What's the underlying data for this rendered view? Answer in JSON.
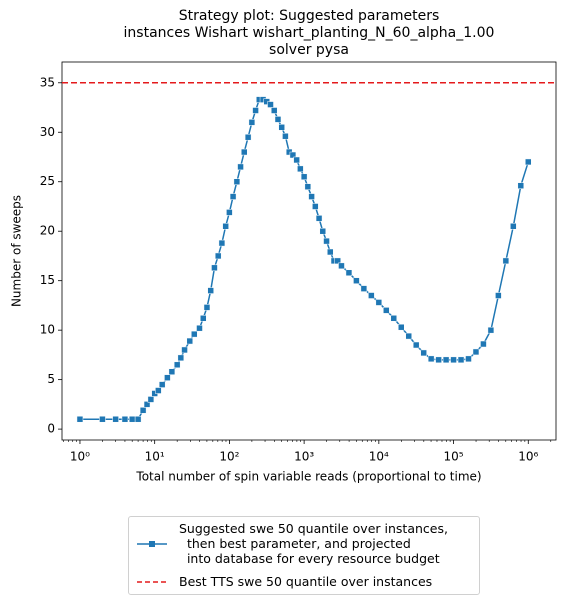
{
  "chart_data": {
    "type": "line",
    "title": "Strategy plot: Suggested parameters\ninstances Wishart wishart_planting_N_60_alpha_1.00\nsolver pysa",
    "x_label": "Total number of spin variable reads (proportional to time)",
    "y_label": "Number of sweeps",
    "x_scale": "log",
    "x": [
      1,
      2,
      3,
      4,
      5,
      6,
      7,
      7.9,
      8.9,
      10,
      11.2,
      12.6,
      14.8,
      17,
      20,
      22.4,
      25.1,
      29.5,
      33.9,
      39.8,
      44.7,
      50.1,
      56.2,
      63.1,
      70.8,
      79.4,
      89.1,
      100,
      112,
      126,
      141,
      158,
      178,
      200,
      224,
      251,
      282,
      316,
      355,
      398,
      447,
      501,
      562,
      631,
      708,
      794,
      891,
      1000,
      1122,
      1259,
      1413,
      1585,
      1778,
      1995,
      2239,
      2512,
      2818,
      3162,
      3981,
      5012,
      6310,
      7943,
      10000,
      12589,
      15849,
      19953,
      25119,
      31623,
      39811,
      50119,
      63096,
      79433,
      100000,
      125893,
      158489,
      199526,
      251189,
      316228,
      398107,
      501187,
      630957,
      794328,
      1000000
    ],
    "series": [
      {
        "name": "Suggested swe 50 quantile over instances,\n  then best parameter, and projected\n  into database for every resource budget",
        "color": "#1f77b4",
        "values": [
          1,
          1,
          1,
          1,
          1,
          1,
          1.9,
          2.5,
          3.0,
          3.6,
          3.9,
          4.5,
          5.2,
          5.8,
          6.5,
          7.2,
          8.0,
          8.9,
          9.6,
          10.2,
          11.2,
          12.3,
          14,
          16.3,
          17.5,
          18.8,
          20.5,
          21.9,
          23.5,
          25,
          26.5,
          28,
          29.5,
          31,
          32.2,
          33.3,
          33.3,
          33.1,
          32.8,
          32.2,
          31.3,
          30.5,
          29.6,
          28,
          27.7,
          27.2,
          26.3,
          25.5,
          24.5,
          23.5,
          22.5,
          21.3,
          20,
          19,
          17.9,
          17,
          17,
          16.5,
          15.8,
          15,
          14.2,
          13.5,
          12.8,
          12,
          11.2,
          10.3,
          9.4,
          8.5,
          7.7,
          7.1,
          7,
          7,
          7,
          7,
          7.1,
          7.8,
          8.6,
          10,
          13.5,
          17,
          20.5,
          24.6,
          27
        ]
      }
    ],
    "reference_line": {
      "name": "Best TTS swe 50 quantile over instances",
      "value": 35,
      "color": "#e41a1c"
    },
    "xlim": [
      0.575,
      2350000
    ],
    "ylim": [
      -1.1,
      37.1
    ],
    "xticks": [
      {
        "value": 1,
        "label": "10⁰"
      },
      {
        "value": 10,
        "label": "10¹"
      },
      {
        "value": 100,
        "label": "10²"
      },
      {
        "value": 1000,
        "label": "10³"
      },
      {
        "value": 10000,
        "label": "10⁴"
      },
      {
        "value": 100000,
        "label": "10⁵"
      },
      {
        "value": 1000000,
        "label": "10⁶"
      }
    ],
    "yticks": [
      0,
      5,
      10,
      15,
      20,
      25,
      30,
      35
    ],
    "legend": "lower center"
  }
}
